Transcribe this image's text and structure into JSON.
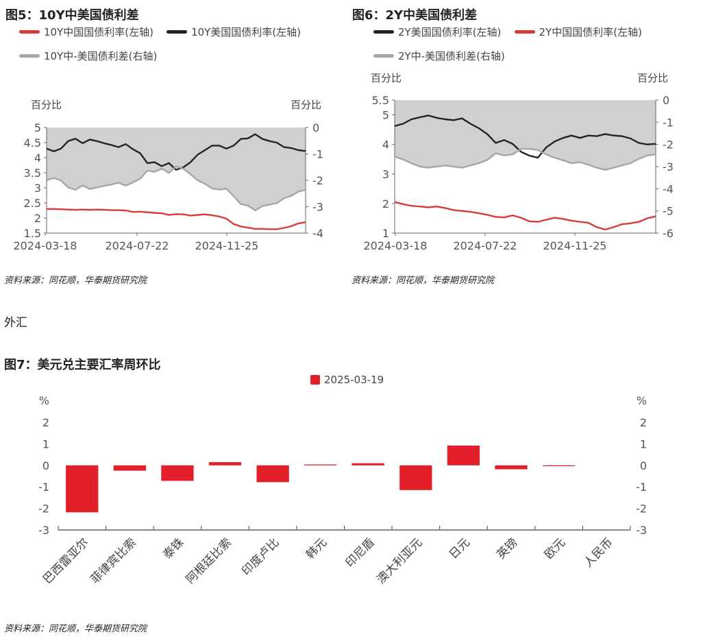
{
  "figure5": {
    "title": "图5：10Y中美国债利差",
    "source": "资料来源：同花顺，华泰期货研究院"
  },
  "figure6": {
    "title": "图6：2Y中美国债利差",
    "source": "资料来源：同花顺，华泰期货研究院"
  },
  "section_label": "外汇",
  "figure7": {
    "title": "图7：美元兑主要汇率周环比",
    "source": "资料来源：同花顺，华泰期货研究院"
  },
  "colors": {
    "red": "#d63b3b",
    "black": "#222222",
    "gray": "#a6a6a6",
    "area": "#cfd0d2",
    "bar": "#e3202a"
  },
  "chart_data": [
    {
      "type": "line",
      "title": "图5：10Y中美国债利差",
      "x_ticks": [
        "2024-03-18",
        "2024-07-22",
        "2024-11-25"
      ],
      "ylabel_left": "百分比",
      "ylabel_right": "百分比",
      "ylim_left": [
        1.5,
        5
      ],
      "ylim_right": [
        -4,
        0
      ],
      "yticks_left": [
        "1.5",
        "2",
        "2.5",
        "3",
        "3.5",
        "4",
        "4.5",
        "5"
      ],
      "yticks_right": [
        "-4",
        "-3",
        "-2",
        "-1",
        "0"
      ],
      "legend": [
        "10Y中国国债利率(左轴)",
        "10Y美国国债利率(左轴)",
        "10Y中-美国债利差(右轴)"
      ],
      "series": [
        {
          "name": "10Y中国国债利率(左轴)",
          "axis": "left",
          "kind": "line",
          "values": [
            2.3,
            2.3,
            2.29,
            2.28,
            2.27,
            2.28,
            2.27,
            2.28,
            2.27,
            2.26,
            2.26,
            2.25,
            2.2,
            2.21,
            2.19,
            2.17,
            2.16,
            2.1,
            2.13,
            2.12,
            2.08,
            2.1,
            2.12,
            2.09,
            2.05,
            1.98,
            1.8,
            1.72,
            1.68,
            1.64,
            1.64,
            1.63,
            1.63,
            1.67,
            1.73,
            1.82,
            1.86
          ]
        },
        {
          "name": "10Y美国国债利率(左轴)",
          "axis": "left",
          "kind": "line",
          "values": [
            4.3,
            4.21,
            4.3,
            4.55,
            4.63,
            4.48,
            4.6,
            4.55,
            4.48,
            4.42,
            4.35,
            4.45,
            4.28,
            4.15,
            3.82,
            3.85,
            3.72,
            3.82,
            3.6,
            3.68,
            3.85,
            4.1,
            4.25,
            4.4,
            4.4,
            4.3,
            4.4,
            4.62,
            4.64,
            4.78,
            4.62,
            4.55,
            4.5,
            4.35,
            4.32,
            4.25,
            4.22
          ]
        },
        {
          "name": "10Y中-美国债利差(右轴)",
          "axis": "right",
          "kind": "line_area",
          "values": [
            -2.0,
            -1.91,
            -2.01,
            -2.27,
            -2.36,
            -2.2,
            -2.33,
            -2.27,
            -2.21,
            -2.16,
            -2.09,
            -2.2,
            -2.08,
            -1.94,
            -1.63,
            -1.68,
            -1.56,
            -1.72,
            -1.47,
            -1.56,
            -1.77,
            -2.0,
            -2.13,
            -2.31,
            -2.35,
            -2.32,
            -2.6,
            -2.9,
            -2.96,
            -3.14,
            -2.98,
            -2.92,
            -2.87,
            -2.68,
            -2.59,
            -2.43,
            -2.36
          ]
        }
      ]
    },
    {
      "type": "line",
      "title": "图6：2Y中美国债利差",
      "x_ticks": [
        "2024-03-18",
        "2024-07-22",
        "2024-11-25"
      ],
      "ylabel_left": "百分比",
      "ylabel_right": "百分比",
      "ylim_left": [
        1,
        5.5
      ],
      "ylim_right": [
        -6,
        0
      ],
      "yticks_left": [
        "1",
        "2",
        "3",
        "4",
        "5",
        "5.5"
      ],
      "yticks_right": [
        "-6",
        "-5",
        "-4",
        "-3",
        "-2",
        "-1",
        "0"
      ],
      "legend": [
        "2Y美国国债利率(左轴)",
        "2Y中国国债利率(左轴)",
        "2Y中-美国债利差(右轴)"
      ],
      "series": [
        {
          "name": "2Y美国国债利率(左轴)",
          "axis": "left",
          "kind": "line",
          "values": [
            4.62,
            4.7,
            4.85,
            4.92,
            4.98,
            4.9,
            4.85,
            4.82,
            4.88,
            4.7,
            4.55,
            4.35,
            4.05,
            4.15,
            4.02,
            3.75,
            3.62,
            3.55,
            3.9,
            4.1,
            4.22,
            4.3,
            4.22,
            4.3,
            4.28,
            4.35,
            4.3,
            4.28,
            4.2,
            4.05,
            4.0,
            4.02
          ]
        },
        {
          "name": "2Y中国国债利率(左轴)",
          "axis": "left",
          "kind": "line",
          "values": [
            2.05,
            1.98,
            1.92,
            1.9,
            1.87,
            1.9,
            1.85,
            1.78,
            1.75,
            1.72,
            1.67,
            1.62,
            1.55,
            1.53,
            1.6,
            1.52,
            1.4,
            1.38,
            1.45,
            1.52,
            1.48,
            1.42,
            1.38,
            1.35,
            1.2,
            1.12,
            1.2,
            1.3,
            1.33,
            1.38,
            1.5,
            1.57
          ]
        },
        {
          "name": "2Y中-美国债利差(右轴)",
          "axis": "right",
          "kind": "line_area",
          "values": [
            -2.55,
            -2.68,
            -2.85,
            -3.0,
            -3.05,
            -3.0,
            -2.95,
            -3.0,
            -3.05,
            -2.95,
            -2.85,
            -2.7,
            -2.4,
            -2.5,
            -2.45,
            -2.2,
            -2.2,
            -2.25,
            -2.45,
            -2.6,
            -2.72,
            -2.85,
            -2.8,
            -2.92,
            -3.05,
            -3.15,
            -3.05,
            -2.95,
            -2.85,
            -2.65,
            -2.5,
            -2.45
          ]
        }
      ]
    },
    {
      "type": "bar",
      "title": "图7：美元兑主要汇率周环比",
      "legend": [
        "2025-03-19"
      ],
      "ylabel_left": "%",
      "ylabel_right": "%",
      "ylim": [
        -3,
        2
      ],
      "yticks": [
        "-3",
        "-2",
        "-1",
        "0",
        "1",
        "2"
      ],
      "categories": [
        "巴西雷亚尔",
        "菲律宾比索",
        "泰铢",
        "阿根廷比索",
        "印度卢比",
        "韩元",
        "印尼盾",
        "澳大利亚元",
        "日元",
        "英镑",
        "欧元",
        "人民币"
      ],
      "series": [
        {
          "name": "2025-03-19",
          "values": [
            -2.18,
            -0.25,
            -0.72,
            0.15,
            -0.78,
            0.04,
            0.1,
            -1.15,
            0.92,
            -0.18,
            -0.03,
            0.0
          ]
        }
      ]
    }
  ]
}
